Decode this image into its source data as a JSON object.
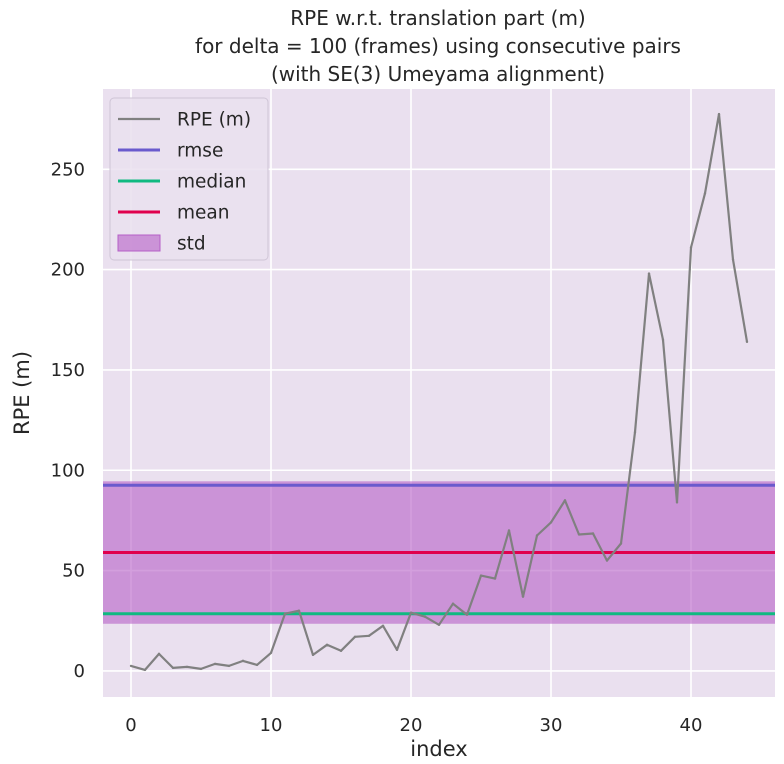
{
  "chart_data": {
    "type": "line",
    "title_lines": [
      "RPE w.r.t. translation part (m)",
      "for delta = 100 (frames) using consecutive pairs",
      "(with SE(3) Umeyama alignment)"
    ],
    "xlabel": "index",
    "ylabel": "RPE (m)",
    "xlim": [
      -2,
      46
    ],
    "ylim": [
      -13,
      290
    ],
    "x_ticks": [
      0,
      10,
      20,
      30,
      40
    ],
    "y_ticks": [
      0,
      50,
      100,
      150,
      200,
      250
    ],
    "grid": true,
    "legend_position": "upper-left",
    "series": [
      {
        "name": "RPE (m)",
        "color": "#808080",
        "x": [
          0,
          1,
          2,
          3,
          4,
          5,
          6,
          7,
          8,
          9,
          10,
          11,
          12,
          13,
          14,
          15,
          16,
          17,
          18,
          19,
          20,
          21,
          22,
          23,
          24,
          25,
          26,
          27,
          28,
          29,
          30,
          31,
          32,
          33,
          34,
          35,
          36,
          37,
          38,
          39,
          40,
          41,
          42,
          43,
          44
        ],
        "y": [
          2.5,
          0.5,
          8.5,
          1.5,
          2,
          1,
          3.5,
          2.5,
          5,
          3,
          9,
          28.5,
          30,
          8,
          13,
          10,
          17,
          17.5,
          22.5,
          10.5,
          29,
          27,
          23,
          33.5,
          28,
          47.5,
          46,
          70,
          37,
          67.5,
          74,
          85,
          68,
          68.5,
          55,
          63.5,
          119,
          198,
          165,
          84,
          211,
          238,
          277.5,
          205,
          164
        ]
      }
    ],
    "stats": [
      {
        "name": "rmse",
        "value": 92.5,
        "color": "#6a5acd"
      },
      {
        "name": "median",
        "value": 28.5,
        "color": "#10b981"
      },
      {
        "name": "mean",
        "value": 59,
        "color": "#e0004d"
      }
    ],
    "std": {
      "name": "std",
      "lower": 23.5,
      "upper": 94.5,
      "color": "#b55fc7"
    },
    "legend": [
      "RPE (m)",
      "rmse",
      "median",
      "mean",
      "std"
    ]
  }
}
